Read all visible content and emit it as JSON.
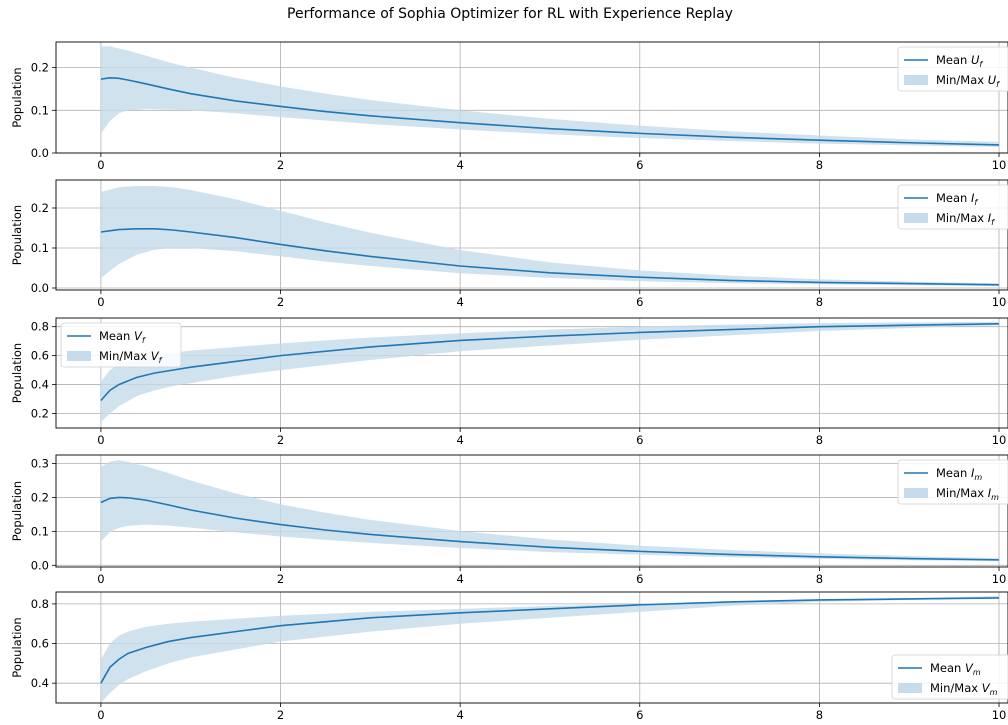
{
  "figure_title": "Performance of Sophia Optimizer for RL with Experience Replay",
  "colors": {
    "line": "#1f77b4",
    "band": "#c6dbeb",
    "grid": "#b0b0b0",
    "axis": "#000000"
  },
  "chart_data": [
    {
      "type": "line",
      "ylabel": "Population",
      "xlim": [
        -0.5,
        10.1
      ],
      "ylim": [
        0,
        0.26
      ],
      "xticks": [
        0,
        2,
        4,
        6,
        8,
        10
      ],
      "yticks": [
        0.0,
        0.1,
        0.2
      ],
      "ytick_labels": [
        "0.0",
        "0.1",
        "0.2"
      ],
      "grid": true,
      "legend_position": "upper-right",
      "legend": [
        {
          "kind": "line",
          "prefix": "Mean ",
          "var": "U",
          "sub": "f"
        },
        {
          "kind": "band",
          "prefix": "Min/Max ",
          "var": "U",
          "sub": "f"
        }
      ],
      "x": [
        0,
        0.1,
        0.2,
        0.3,
        0.5,
        0.75,
        1,
        1.5,
        2,
        2.5,
        3,
        4,
        5,
        6,
        7,
        8,
        9,
        10
      ],
      "mean": [
        0.173,
        0.176,
        0.175,
        0.171,
        0.162,
        0.15,
        0.139,
        0.122,
        0.109,
        0.097,
        0.087,
        0.071,
        0.057,
        0.046,
        0.037,
        0.03,
        0.024,
        0.019
      ],
      "min": [
        0.045,
        0.075,
        0.093,
        0.1,
        0.103,
        0.102,
        0.1,
        0.093,
        0.084,
        0.076,
        0.068,
        0.055,
        0.044,
        0.035,
        0.028,
        0.022,
        0.018,
        0.014
      ],
      "max": [
        0.25,
        0.25,
        0.245,
        0.24,
        0.228,
        0.213,
        0.2,
        0.176,
        0.156,
        0.139,
        0.124,
        0.1,
        0.08,
        0.064,
        0.051,
        0.041,
        0.032,
        0.026
      ]
    },
    {
      "type": "line",
      "ylabel": "Population",
      "xlim": [
        -0.5,
        10.1
      ],
      "ylim": [
        -0.005,
        0.27
      ],
      "xticks": [
        0,
        2,
        4,
        6,
        8,
        10
      ],
      "yticks": [
        0.0,
        0.1,
        0.2
      ],
      "ytick_labels": [
        "0.0",
        "0.1",
        "0.2"
      ],
      "grid": true,
      "legend_position": "upper-right",
      "legend": [
        {
          "kind": "line",
          "prefix": "Mean ",
          "var": "I",
          "sub": "f"
        },
        {
          "kind": "band",
          "prefix": "Min/Max ",
          "var": "I",
          "sub": "f"
        }
      ],
      "x": [
        0,
        0.2,
        0.4,
        0.6,
        0.8,
        1,
        1.5,
        2,
        2.5,
        3,
        4,
        5,
        6,
        7,
        8,
        9,
        10
      ],
      "mean": [
        0.14,
        0.146,
        0.148,
        0.148,
        0.145,
        0.14,
        0.126,
        0.109,
        0.093,
        0.079,
        0.055,
        0.038,
        0.027,
        0.019,
        0.014,
        0.011,
        0.008
      ],
      "min": [
        0.025,
        0.06,
        0.083,
        0.096,
        0.1,
        0.1,
        0.092,
        0.079,
        0.066,
        0.055,
        0.037,
        0.025,
        0.017,
        0.012,
        0.009,
        0.007,
        0.005
      ],
      "max": [
        0.24,
        0.252,
        0.255,
        0.255,
        0.252,
        0.245,
        0.222,
        0.193,
        0.164,
        0.138,
        0.095,
        0.064,
        0.044,
        0.031,
        0.022,
        0.016,
        0.012
      ]
    },
    {
      "type": "line",
      "ylabel": "Population",
      "xlim": [
        -0.5,
        10.1
      ],
      "ylim": [
        0.1,
        0.86
      ],
      "xticks": [
        0,
        2,
        4,
        6,
        8,
        10
      ],
      "yticks": [
        0.2,
        0.4,
        0.6,
        0.8
      ],
      "ytick_labels": [
        "0.2",
        "0.4",
        "0.6",
        "0.8"
      ],
      "grid": true,
      "legend_position": "upper-left",
      "legend": [
        {
          "kind": "line",
          "prefix": "Mean ",
          "var": "V",
          "sub": "f"
        },
        {
          "kind": "band",
          "prefix": "Min/Max ",
          "var": "V",
          "sub": "f"
        }
      ],
      "x": [
        0,
        0.1,
        0.2,
        0.4,
        0.6,
        0.8,
        1,
        1.5,
        2,
        3,
        4,
        5,
        6,
        7,
        8,
        9,
        10
      ],
      "mean": [
        0.29,
        0.36,
        0.4,
        0.45,
        0.48,
        0.5,
        0.52,
        0.56,
        0.6,
        0.66,
        0.705,
        0.735,
        0.76,
        0.78,
        0.8,
        0.81,
        0.82
      ],
      "min": [
        0.14,
        0.2,
        0.25,
        0.32,
        0.36,
        0.39,
        0.41,
        0.46,
        0.5,
        0.57,
        0.63,
        0.67,
        0.71,
        0.74,
        0.77,
        0.79,
        0.81
      ],
      "max": [
        0.42,
        0.5,
        0.54,
        0.58,
        0.6,
        0.62,
        0.635,
        0.66,
        0.685,
        0.725,
        0.755,
        0.78,
        0.8,
        0.815,
        0.825,
        0.83,
        0.833
      ]
    },
    {
      "type": "line",
      "ylabel": "Population",
      "xlim": [
        -0.5,
        10.1
      ],
      "ylim": [
        -0.005,
        0.325
      ],
      "xticks": [
        0,
        2,
        4,
        6,
        8,
        10
      ],
      "yticks": [
        0.0,
        0.1,
        0.2,
        0.3
      ],
      "ytick_labels": [
        "0.0",
        "0.1",
        "0.2",
        "0.3"
      ],
      "grid": true,
      "legend_position": "upper-right",
      "legend": [
        {
          "kind": "line",
          "prefix": "Mean ",
          "var": "I",
          "sub": "m"
        },
        {
          "kind": "band",
          "prefix": "Min/Max ",
          "var": "I",
          "sub": "m"
        }
      ],
      "x": [
        0,
        0.1,
        0.2,
        0.3,
        0.5,
        0.75,
        1,
        1.5,
        2,
        2.5,
        3,
        4,
        5,
        6,
        7,
        8,
        9,
        10
      ],
      "mean": [
        0.185,
        0.197,
        0.2,
        0.199,
        0.192,
        0.178,
        0.163,
        0.139,
        0.12,
        0.104,
        0.091,
        0.07,
        0.053,
        0.041,
        0.032,
        0.025,
        0.02,
        0.016
      ],
      "min": [
        0.07,
        0.098,
        0.11,
        0.116,
        0.12,
        0.117,
        0.111,
        0.097,
        0.085,
        0.075,
        0.066,
        0.051,
        0.039,
        0.031,
        0.024,
        0.019,
        0.015,
        0.012
      ],
      "max": [
        0.29,
        0.305,
        0.31,
        0.305,
        0.292,
        0.272,
        0.25,
        0.212,
        0.18,
        0.155,
        0.134,
        0.101,
        0.076,
        0.058,
        0.045,
        0.035,
        0.027,
        0.021
      ]
    },
    {
      "type": "line",
      "ylabel": "Population",
      "xlim": [
        -0.5,
        10.1
      ],
      "ylim": [
        0.3,
        0.86
      ],
      "xticks": [
        0,
        2,
        4,
        6,
        8,
        10
      ],
      "yticks": [
        0.4,
        0.6,
        0.8
      ],
      "ytick_labels": [
        "0.4",
        "0.6",
        "0.8"
      ],
      "grid": true,
      "legend_position": "lower-right",
      "legend": [
        {
          "kind": "line",
          "prefix": "Mean ",
          "var": "V",
          "sub": "m"
        },
        {
          "kind": "band",
          "prefix": "Min/Max ",
          "var": "V",
          "sub": "m"
        }
      ],
      "x": [
        0,
        0.1,
        0.2,
        0.3,
        0.5,
        0.75,
        1,
        1.5,
        2,
        3,
        4,
        5,
        6,
        7,
        8,
        9,
        10
      ],
      "mean": [
        0.4,
        0.48,
        0.52,
        0.55,
        0.58,
        0.61,
        0.63,
        0.66,
        0.69,
        0.73,
        0.755,
        0.775,
        0.795,
        0.81,
        0.82,
        0.825,
        0.83
      ],
      "min": [
        0.3,
        0.35,
        0.39,
        0.42,
        0.46,
        0.5,
        0.53,
        0.57,
        0.61,
        0.66,
        0.7,
        0.73,
        0.76,
        0.79,
        0.81,
        0.82,
        0.83
      ],
      "max": [
        0.52,
        0.6,
        0.64,
        0.66,
        0.685,
        0.7,
        0.71,
        0.725,
        0.74,
        0.76,
        0.775,
        0.79,
        0.8,
        0.81,
        0.82,
        0.83,
        0.84
      ]
    }
  ]
}
